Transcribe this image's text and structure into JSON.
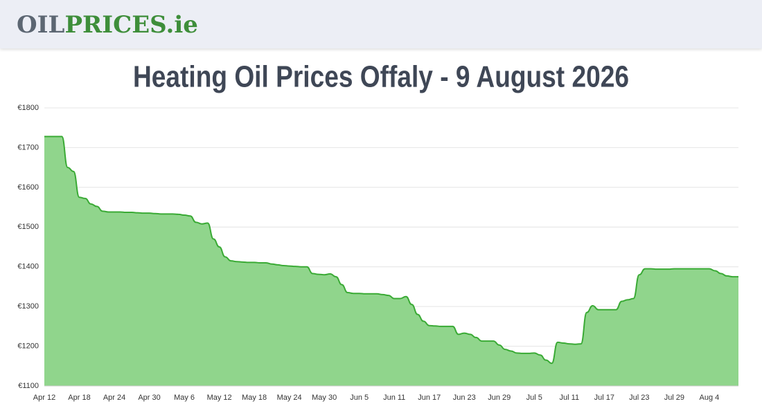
{
  "header": {
    "logo_dark": "OIL",
    "logo_green": "PRICES.ie"
  },
  "chart_data": {
    "type": "area",
    "title": "Heating Oil Prices Offaly - 9 August 2026",
    "categories": [
      "Apr 12",
      null,
      null,
      null,
      null,
      null,
      "Apr 18",
      null,
      null,
      null,
      null,
      null,
      "Apr 24",
      null,
      null,
      null,
      null,
      null,
      "Apr 30",
      null,
      null,
      null,
      null,
      null,
      "May 6",
      null,
      null,
      null,
      null,
      null,
      "May 12",
      null,
      null,
      null,
      null,
      null,
      "May 18",
      null,
      null,
      null,
      null,
      null,
      "May 24",
      null,
      null,
      null,
      null,
      null,
      "May 30",
      null,
      null,
      null,
      null,
      null,
      "Jun 5",
      null,
      null,
      null,
      null,
      null,
      "Jun 11",
      null,
      null,
      null,
      null,
      null,
      "Jun 17",
      null,
      null,
      null,
      null,
      null,
      "Jun 23",
      null,
      null,
      null,
      null,
      null,
      "Jun 29",
      null,
      null,
      null,
      null,
      null,
      "Jul 5",
      null,
      null,
      null,
      null,
      null,
      "Jul 11",
      null,
      null,
      null,
      null,
      null,
      "Jul 17",
      null,
      null,
      null,
      null,
      null,
      "Jul 23",
      null,
      null,
      null,
      null,
      null,
      "Jul 29",
      null,
      null,
      null,
      null,
      null,
      "Aug 4",
      null,
      null,
      null,
      null,
      null
    ],
    "series": [
      {
        "name": "Heating Oil Price",
        "color": "#3aaa35",
        "values": [
          1728,
          1728,
          1728,
          1728,
          1650,
          1640,
          1575,
          1572,
          1558,
          1552,
          1540,
          1538,
          1538,
          1538,
          1537,
          1537,
          1536,
          1535,
          1535,
          1534,
          1533,
          1533,
          1533,
          1532,
          1530,
          1528,
          1512,
          1508,
          1510,
          1470,
          1450,
          1425,
          1415,
          1413,
          1412,
          1411,
          1411,
          1410,
          1410,
          1407,
          1405,
          1403,
          1402,
          1401,
          1400,
          1400,
          1383,
          1381,
          1380,
          1382,
          1375,
          1355,
          1335,
          1333,
          1333,
          1332,
          1332,
          1332,
          1330,
          1328,
          1320,
          1320,
          1325,
          1305,
          1280,
          1263,
          1252,
          1251,
          1250,
          1250,
          1250,
          1230,
          1233,
          1230,
          1222,
          1213,
          1213,
          1213,
          1203,
          1192,
          1188,
          1183,
          1182,
          1182,
          1183,
          1178,
          1165,
          1157,
          1210,
          1208,
          1206,
          1205,
          1206,
          1285,
          1302,
          1292,
          1292,
          1292,
          1292,
          1313,
          1317,
          1320,
          1380,
          1395,
          1395,
          1394,
          1394,
          1394,
          1395,
          1395,
          1395,
          1395,
          1395,
          1395,
          1395,
          1390,
          1383,
          1377,
          1375,
          1375
        ]
      }
    ],
    "ylim": [
      1100,
      1800
    ],
    "yticks": [
      {
        "value": 1100,
        "label": "€1100"
      },
      {
        "value": 1200,
        "label": "€1200"
      },
      {
        "value": 1300,
        "label": "€1300"
      },
      {
        "value": 1400,
        "label": "€1400"
      },
      {
        "value": 1500,
        "label": "€1500"
      },
      {
        "value": 1600,
        "label": "€1600"
      },
      {
        "value": 1700,
        "label": "€1700"
      },
      {
        "value": 1800,
        "label": "€1800"
      }
    ],
    "grid": true,
    "fill_color": "#90d58c"
  }
}
